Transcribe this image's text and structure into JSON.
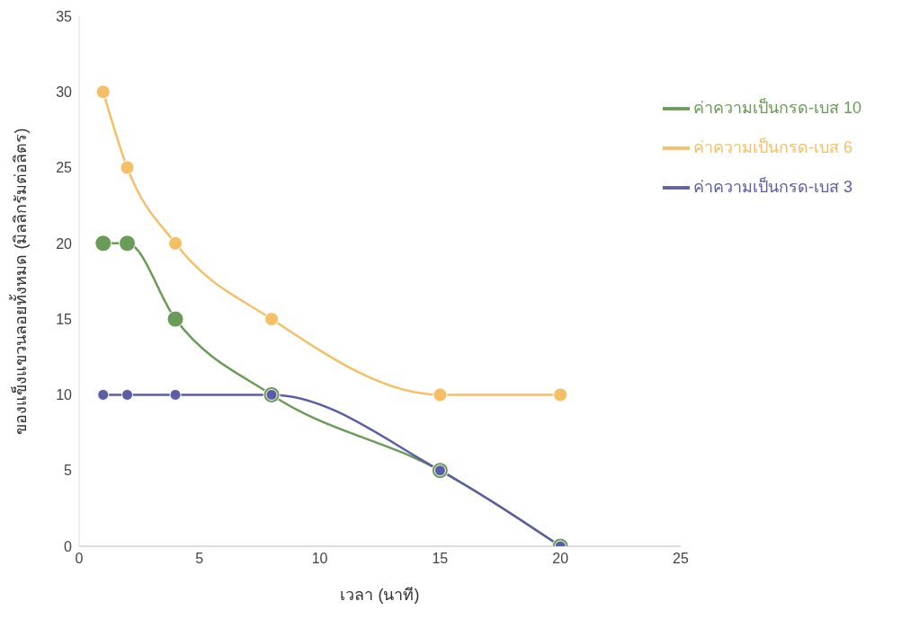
{
  "chart_data": {
    "type": "line",
    "xlabel": "เวลา (นาที)",
    "ylabel": "ของแข็งแขวนลอยทั้งหมด (มิลลิกรัมต่อลิตร)",
    "x": [
      1,
      2,
      4,
      8,
      15,
      20
    ],
    "series": [
      {
        "name": "ค่าความเป็นกรด-เบส 10",
        "color": "#6b9b58",
        "values": [
          20,
          20,
          15,
          10,
          5,
          0
        ]
      },
      {
        "name": "ค่าความเป็นกรด-เบส 6",
        "color": "#f5c065",
        "values": [
          30,
          25,
          20,
          15,
          10,
          10
        ]
      },
      {
        "name": "ค่าความเป็นกรด-เบส 3",
        "color": "#5b5ea6",
        "values": [
          10,
          10,
          10,
          10,
          5,
          0
        ]
      }
    ],
    "xlim": [
      0,
      25
    ],
    "xticks": [
      0,
      5,
      10,
      15,
      20,
      25
    ],
    "ylim": [
      0,
      35
    ],
    "yticks": [
      0,
      5,
      10,
      15,
      20,
      25,
      30,
      35
    ],
    "grid": false,
    "legend": "top right",
    "marker": "circle",
    "line_style": "solid"
  }
}
